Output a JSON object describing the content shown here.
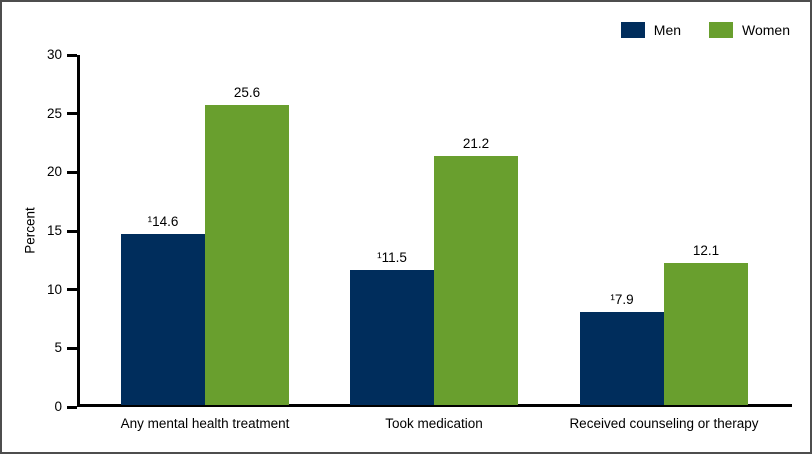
{
  "chart_data": {
    "type": "bar",
    "title": "",
    "xlabel": "",
    "ylabel": "Percent",
    "ylim": [
      0,
      30
    ],
    "yticks": [
      0,
      5,
      10,
      15,
      20,
      25,
      30
    ],
    "grid": false,
    "legend_position": "top-right",
    "categories": [
      "Any mental health treatment",
      "Took medication",
      "Received counseling or therapy"
    ],
    "series": [
      {
        "name": "Men",
        "color": "#002d5c",
        "values": [
          14.6,
          11.5,
          7.9
        ],
        "labels": [
          "¹14.6",
          "¹11.5",
          "¹7.9"
        ]
      },
      {
        "name": "Women",
        "color": "#699f2e",
        "values": [
          25.6,
          21.2,
          12.1
        ],
        "labels": [
          "25.6",
          "21.2",
          "12.1"
        ]
      }
    ]
  },
  "colors": {
    "men": "#002d5c",
    "women": "#699f2e",
    "axis": "#000000",
    "text": "#000000",
    "border": "#4d4d4d",
    "background": "#ffffff"
  }
}
